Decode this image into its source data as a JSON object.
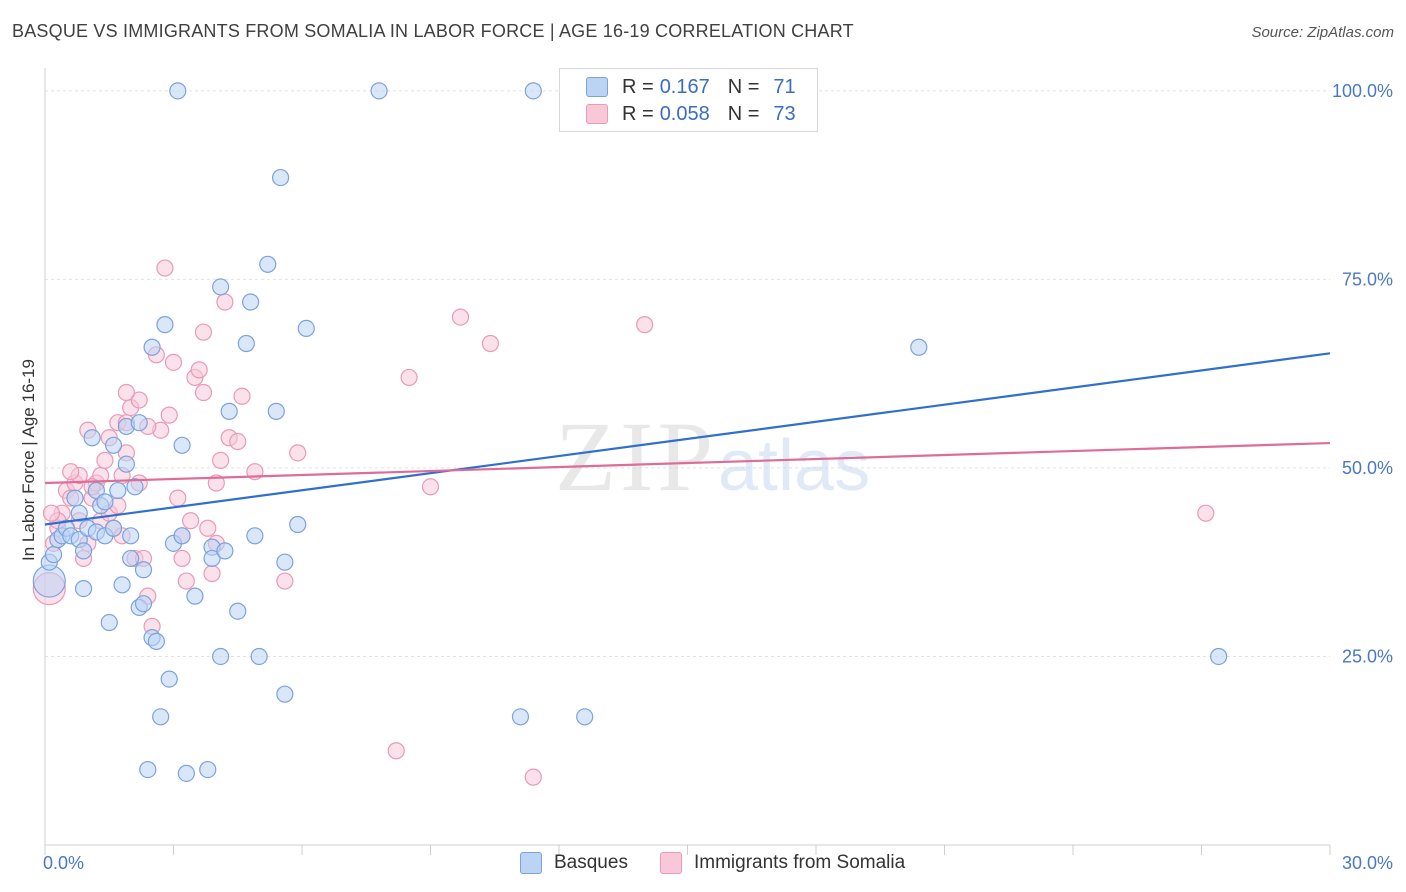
{
  "title": "BASQUE VS IMMIGRANTS FROM SOMALIA IN LABOR FORCE | AGE 16-19 CORRELATION CHART",
  "source": "Source: ZipAtlas.com",
  "watermark": {
    "zip": "ZIP",
    "atlas": "atlas"
  },
  "colors": {
    "blue_fill": "#bcd4f4",
    "blue_stroke": "#7aa3de",
    "blue_line": "#2f6fd0",
    "pink_fill": "#f8c8d8",
    "pink_stroke": "#e99ab5",
    "pink_line": "#e06b97",
    "tick_text": "#4a78c2",
    "grid": "#e2e2e2"
  },
  "legend": {
    "rows": [
      {
        "r_label": "R =",
        "r_value": "0.167",
        "n_label": "N =",
        "n_value": "71",
        "color": "#bcd4f4",
        "border": "#7aa3de"
      },
      {
        "r_label": "R =",
        "r_value": "0.058",
        "n_label": "N =",
        "n_value": "73",
        "color": "#f8c8d8",
        "border": "#e99ab5"
      }
    ]
  },
  "bottom_legend": {
    "items": [
      {
        "label": "Basques",
        "color": "#bcd4f4",
        "border": "#7aa3de"
      },
      {
        "label": "Immigrants from Somalia",
        "color": "#f8c8d8",
        "border": "#e99ab5"
      }
    ]
  },
  "chart_data": {
    "type": "scatter",
    "title": "BASQUE VS IMMIGRANTS FROM SOMALIA IN LABOR FORCE | AGE 16-19 CORRELATION CHART",
    "xlabel": "",
    "ylabel": "In Labor Force | Age 16-19",
    "xlim": [
      0,
      30
    ],
    "ylim": [
      0,
      102.5
    ],
    "x_tick_labels": [
      {
        "value": 0,
        "label": "0.0%"
      },
      {
        "value": 30,
        "label": "30.0%"
      }
    ],
    "y_tick_labels": [
      {
        "value": 25,
        "label": "25.0%"
      },
      {
        "value": 50,
        "label": "50.0%"
      },
      {
        "value": 75,
        "label": "75.0%"
      },
      {
        "value": 100,
        "label": "100.0%"
      }
    ],
    "grid": true,
    "series": [
      {
        "name": "Basques",
        "color": "#bcd4f4",
        "trend": {
          "x": [
            0,
            30
          ],
          "y": [
            42.5,
            65.2
          ]
        },
        "points": [
          [
            0.1,
            35
          ],
          [
            0.1,
            37.5
          ],
          [
            0.2,
            38.5
          ],
          [
            0.3,
            40.5
          ],
          [
            0.4,
            41
          ],
          [
            0.5,
            42
          ],
          [
            0.6,
            41
          ],
          [
            0.7,
            46
          ],
          [
            0.8,
            40.5
          ],
          [
            0.9,
            39
          ],
          [
            0.8,
            44
          ],
          [
            0.9,
            34
          ],
          [
            1.0,
            42
          ],
          [
            1.1,
            54
          ],
          [
            1.2,
            47
          ],
          [
            1.2,
            41.5
          ],
          [
            1.3,
            45
          ],
          [
            1.4,
            45.5
          ],
          [
            1.4,
            41
          ],
          [
            1.5,
            29.5
          ],
          [
            1.6,
            42
          ],
          [
            1.6,
            53
          ],
          [
            1.7,
            47
          ],
          [
            1.8,
            34.5
          ],
          [
            1.9,
            50.5
          ],
          [
            1.9,
            55.5
          ],
          [
            2.0,
            38
          ],
          [
            2.0,
            41
          ],
          [
            2.1,
            47.5
          ],
          [
            2.2,
            56
          ],
          [
            2.2,
            31.5
          ],
          [
            2.3,
            32
          ],
          [
            2.3,
            36.5
          ],
          [
            2.4,
            10
          ],
          [
            2.5,
            66
          ],
          [
            2.5,
            27.5
          ],
          [
            2.6,
            27
          ],
          [
            2.7,
            17
          ],
          [
            2.8,
            69
          ],
          [
            2.9,
            22
          ],
          [
            3.0,
            40
          ],
          [
            3.1,
            100
          ],
          [
            3.2,
            53
          ],
          [
            3.2,
            41
          ],
          [
            3.3,
            9.5
          ],
          [
            3.5,
            33
          ],
          [
            3.8,
            10
          ],
          [
            3.9,
            39.5
          ],
          [
            3.9,
            38
          ],
          [
            4.1,
            25
          ],
          [
            4.1,
            74
          ],
          [
            4.2,
            39
          ],
          [
            4.3,
            57.5
          ],
          [
            4.5,
            31
          ],
          [
            4.7,
            66.5
          ],
          [
            4.8,
            72
          ],
          [
            4.9,
            41
          ],
          [
            5.0,
            25
          ],
          [
            5.2,
            77
          ],
          [
            5.4,
            57.5
          ],
          [
            5.5,
            88.5
          ],
          [
            5.6,
            20
          ],
          [
            5.6,
            37.5
          ],
          [
            5.9,
            42.5
          ],
          [
            6.1,
            68.5
          ],
          [
            7.8,
            100
          ],
          [
            11.1,
            17
          ],
          [
            11.4,
            100
          ],
          [
            12.6,
            17
          ],
          [
            20.4,
            66
          ],
          [
            27.4,
            25
          ]
        ]
      },
      {
        "name": "Immigrants from Somalia",
        "color": "#f8c8d8",
        "trend": {
          "x": [
            0,
            30
          ],
          "y": [
            48.0,
            53.3
          ]
        },
        "points": [
          [
            0.1,
            34
          ],
          [
            0.2,
            40
          ],
          [
            0.3,
            42
          ],
          [
            0.4,
            44
          ],
          [
            0.5,
            47
          ],
          [
            0.6,
            46
          ],
          [
            0.7,
            48
          ],
          [
            0.8,
            49
          ],
          [
            0.8,
            43
          ],
          [
            0.9,
            38
          ],
          [
            1.0,
            40
          ],
          [
            1.0,
            55
          ],
          [
            1.1,
            46
          ],
          [
            1.2,
            48
          ],
          [
            1.3,
            43
          ],
          [
            1.3,
            49
          ],
          [
            1.4,
            51
          ],
          [
            1.5,
            44
          ],
          [
            1.5,
            54
          ],
          [
            1.6,
            42
          ],
          [
            1.7,
            56
          ],
          [
            1.7,
            45
          ],
          [
            1.8,
            49
          ],
          [
            1.8,
            41
          ],
          [
            1.9,
            52
          ],
          [
            1.9,
            56
          ],
          [
            2.0,
            58
          ],
          [
            2.1,
            38
          ],
          [
            2.2,
            48
          ],
          [
            2.2,
            59
          ],
          [
            2.3,
            38
          ],
          [
            2.4,
            33
          ],
          [
            2.5,
            29
          ],
          [
            2.6,
            65
          ],
          [
            2.7,
            55
          ],
          [
            2.8,
            76.5
          ],
          [
            2.9,
            57
          ],
          [
            3.0,
            64
          ],
          [
            3.1,
            46
          ],
          [
            3.2,
            38
          ],
          [
            3.3,
            35
          ],
          [
            3.4,
            43
          ],
          [
            3.5,
            62
          ],
          [
            3.6,
            63
          ],
          [
            3.7,
            68
          ],
          [
            3.7,
            60
          ],
          [
            3.8,
            42
          ],
          [
            3.9,
            36
          ],
          [
            4.0,
            48
          ],
          [
            4.0,
            40
          ],
          [
            4.1,
            51
          ],
          [
            4.2,
            72
          ],
          [
            4.3,
            54
          ],
          [
            4.5,
            53.5
          ],
          [
            4.6,
            59.5
          ],
          [
            4.9,
            49.5
          ],
          [
            5.6,
            35
          ],
          [
            5.9,
            52
          ],
          [
            8.2,
            12.5
          ],
          [
            8.5,
            62
          ],
          [
            9.0,
            47.5
          ],
          [
            9.7,
            70
          ],
          [
            10.4,
            66.5
          ],
          [
            11.4,
            9
          ],
          [
            14.0,
            69
          ],
          [
            27.1,
            44
          ],
          [
            0.3,
            43
          ],
          [
            0.6,
            49.5
          ],
          [
            1.1,
            47.5
          ],
          [
            2.4,
            55.5
          ],
          [
            3.2,
            41
          ],
          [
            0.15,
            44
          ],
          [
            1.9,
            60
          ]
        ]
      }
    ]
  }
}
